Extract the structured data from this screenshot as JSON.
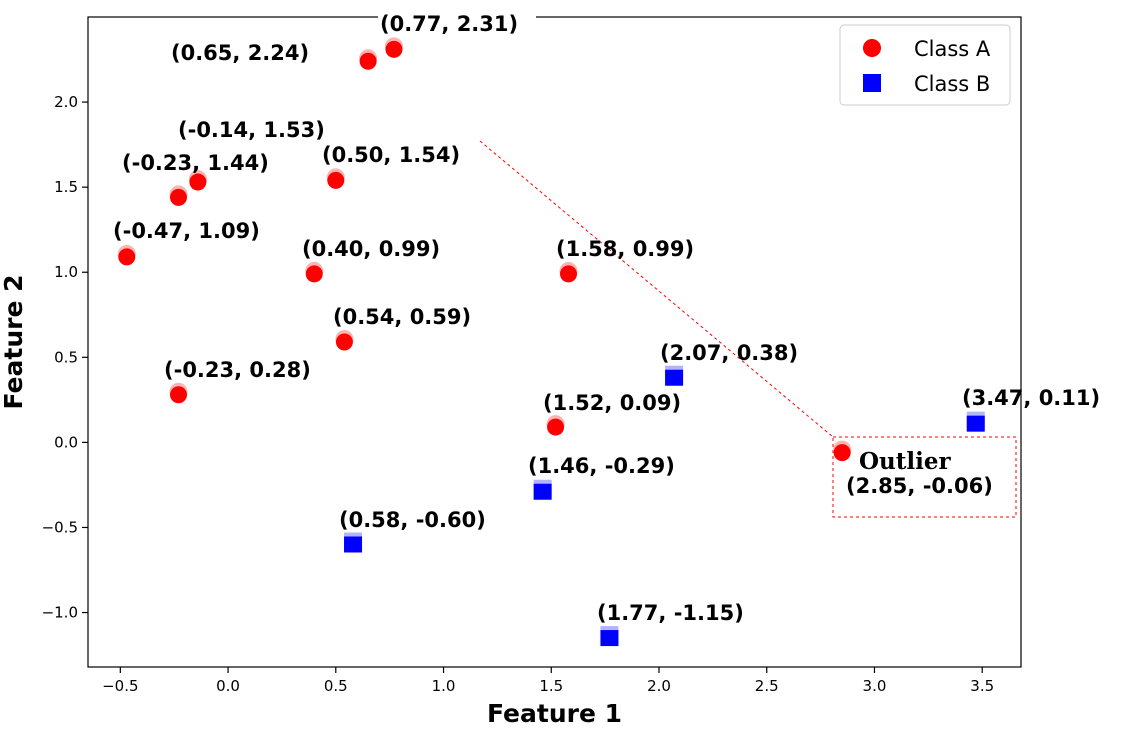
{
  "chart_data": {
    "type": "scatter",
    "xlabel": "Feature 1",
    "ylabel": "Feature 2",
    "xlim": [
      -0.65,
      3.68
    ],
    "ylim": [
      -1.32,
      2.5
    ],
    "xticks": [
      -0.5,
      0.0,
      0.5,
      1.0,
      1.5,
      2.0,
      2.5,
      3.0,
      3.5
    ],
    "xtick_labels": [
      "−0.5",
      "0.0",
      "0.5",
      "1.0",
      "1.5",
      "2.0",
      "2.5",
      "3.0",
      "3.5"
    ],
    "yticks": [
      -1.0,
      -0.5,
      0.0,
      0.5,
      1.0,
      1.5,
      2.0
    ],
    "ytick_labels": [
      "−1.0",
      "−0.5",
      "0.0",
      "0.5",
      "1.0",
      "1.5",
      "2.0"
    ],
    "grid": false,
    "legend_position": "top-right",
    "series": [
      {
        "name": "Class A",
        "marker": "circle",
        "color": "#ff0000",
        "points": [
          {
            "x": 0.77,
            "y": 2.31,
            "label": "(0.77, 2.31)"
          },
          {
            "x": 0.65,
            "y": 2.24,
            "label": "(0.65, 2.24)"
          },
          {
            "x": -0.14,
            "y": 1.53,
            "label": "(-0.14, 1.53)"
          },
          {
            "x": -0.23,
            "y": 1.44,
            "label": "(-0.23, 1.44)"
          },
          {
            "x": 0.5,
            "y": 1.54,
            "label": "(0.50, 1.54)"
          },
          {
            "x": -0.47,
            "y": 1.09,
            "label": "(-0.47, 1.09)"
          },
          {
            "x": 0.4,
            "y": 0.99,
            "label": "(0.40, 0.99)"
          },
          {
            "x": 1.58,
            "y": 0.99,
            "label": "(1.58, 0.99)"
          },
          {
            "x": 0.54,
            "y": 0.59,
            "label": "(0.54, 0.59)"
          },
          {
            "x": -0.23,
            "y": 0.28,
            "label": "(-0.23, 0.28)"
          },
          {
            "x": 1.52,
            "y": 0.09,
            "label": "(1.52, 0.09)"
          },
          {
            "x": 2.85,
            "y": -0.06,
            "label": "(2.85, -0.06)"
          }
        ]
      },
      {
        "name": "Class B",
        "marker": "square",
        "color": "#0000ff",
        "points": [
          {
            "x": 2.07,
            "y": 0.38,
            "label": "(2.07, 0.38)"
          },
          {
            "x": 3.47,
            "y": 0.11,
            "label": "(3.47, 0.11)"
          },
          {
            "x": 1.46,
            "y": -0.29,
            "label": "(1.46, -0.29)"
          },
          {
            "x": 0.58,
            "y": -0.6,
            "label": "(0.58, -0.60)"
          },
          {
            "x": 1.77,
            "y": -1.15,
            "label": "(1.77, -1.15)"
          }
        ]
      }
    ],
    "annotation": {
      "text": "Outlier",
      "point_label": "(2.85, -0.06)",
      "point": {
        "x": 2.85,
        "y": -0.06
      }
    }
  }
}
